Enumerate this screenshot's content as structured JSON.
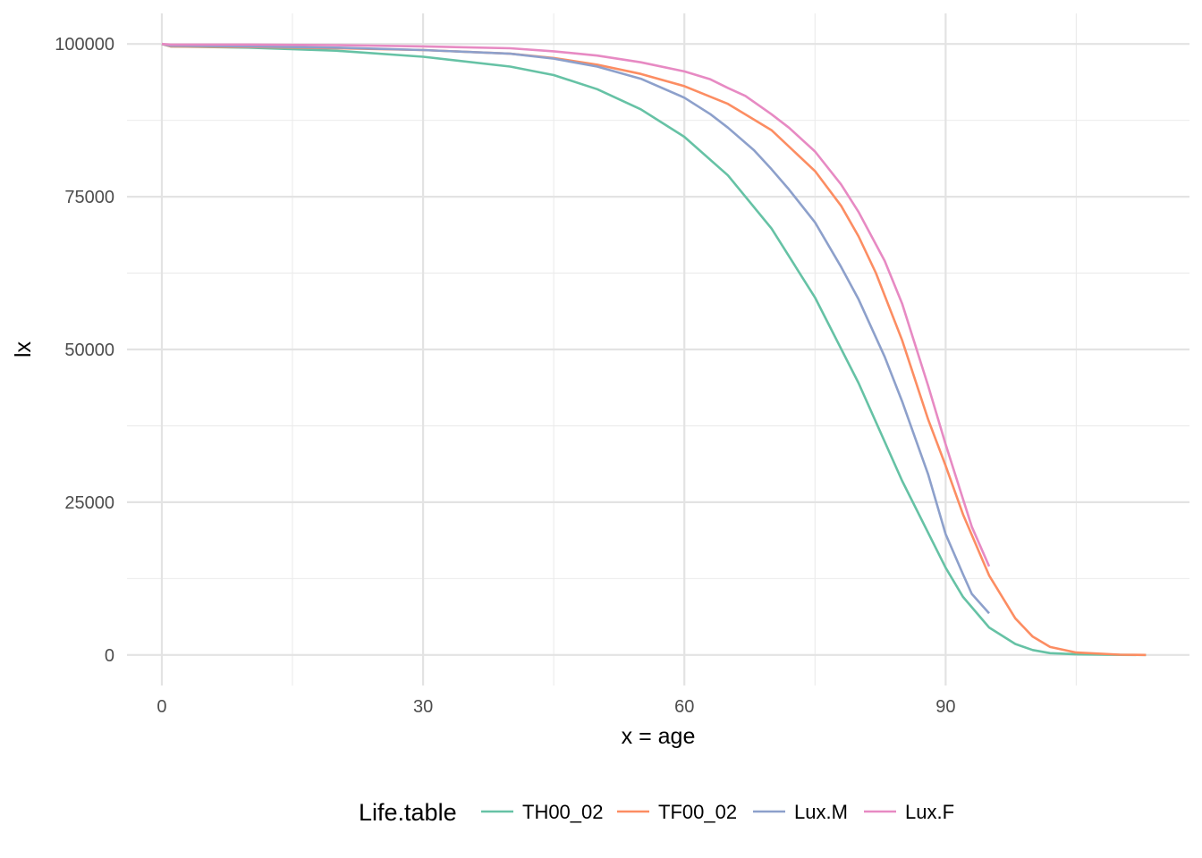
{
  "chart_data": {
    "type": "line",
    "title": "",
    "xlabel": "x = age",
    "ylabel": "lx",
    "xlim": [
      -4,
      118
    ],
    "ylim": [
      -5000,
      105000
    ],
    "x_ticks": [
      0,
      30,
      60,
      90
    ],
    "x_tick_labels": [
      "0",
      "30",
      "60",
      "90"
    ],
    "x_minor_ticks": [
      15,
      45,
      75,
      105
    ],
    "y_ticks": [
      0,
      25000,
      50000,
      75000,
      100000
    ],
    "y_tick_labels": [
      "0",
      "25000",
      "50000",
      "75000",
      "100000"
    ],
    "y_minor_ticks": [
      12500,
      37500,
      62500,
      87500
    ],
    "grid": true,
    "legend": {
      "title": "Life.table",
      "position": "bottom"
    },
    "series": [
      {
        "name": "TH00_02",
        "color": "#66c2a5",
        "x": [
          0,
          1,
          10,
          20,
          30,
          40,
          45,
          50,
          55,
          60,
          65,
          70,
          75,
          80,
          85,
          90,
          92,
          95,
          98,
          100,
          102,
          105,
          110,
          113
        ],
        "y": [
          100000,
          99600,
          99400,
          98900,
          97900,
          96300,
          94900,
          92600,
          89300,
          84800,
          78500,
          69800,
          58500,
          44500,
          28500,
          14300,
          9500,
          4500,
          1800,
          800,
          300,
          100,
          10,
          0
        ]
      },
      {
        "name": "TF00_02",
        "color": "#fc8d62",
        "x": [
          0,
          1,
          10,
          20,
          30,
          40,
          45,
          50,
          55,
          60,
          65,
          70,
          75,
          78,
          80,
          82,
          85,
          88,
          90,
          92,
          95,
          98,
          100,
          102,
          105,
          110,
          113
        ],
        "y": [
          100000,
          99600,
          99500,
          99300,
          99000,
          98400,
          97700,
          96600,
          95100,
          93100,
          90200,
          85900,
          79200,
          73500,
          68500,
          62500,
          51500,
          38500,
          31000,
          23000,
          13000,
          6000,
          3000,
          1300,
          400,
          50,
          0
        ]
      },
      {
        "name": "Lux.M",
        "color": "#8da0cb",
        "x": [
          0,
          1,
          10,
          20,
          30,
          40,
          45,
          50,
          55,
          60,
          63,
          65,
          68,
          70,
          72,
          75,
          78,
          80,
          83,
          85,
          88,
          90,
          92,
          93,
          95
        ],
        "y": [
          100000,
          99700,
          99600,
          99400,
          99000,
          98400,
          97600,
          96300,
          94300,
          91200,
          88500,
          86300,
          82600,
          79500,
          76200,
          70800,
          63500,
          58200,
          48800,
          41500,
          29500,
          19800,
          13200,
          10000,
          6800
        ]
      },
      {
        "name": "Lux.F",
        "color": "#e78ac3",
        "x": [
          0,
          1,
          10,
          20,
          30,
          40,
          45,
          50,
          55,
          60,
          63,
          65,
          67,
          70,
          72,
          75,
          78,
          80,
          83,
          85,
          88,
          90,
          92,
          93,
          95
        ],
        "y": [
          100000,
          99900,
          99900,
          99800,
          99600,
          99300,
          98800,
          98100,
          97000,
          95500,
          94200,
          92800,
          91500,
          88500,
          86300,
          82400,
          77000,
          72500,
          64500,
          57500,
          44000,
          34500,
          25500,
          21000,
          14500
        ]
      }
    ]
  }
}
